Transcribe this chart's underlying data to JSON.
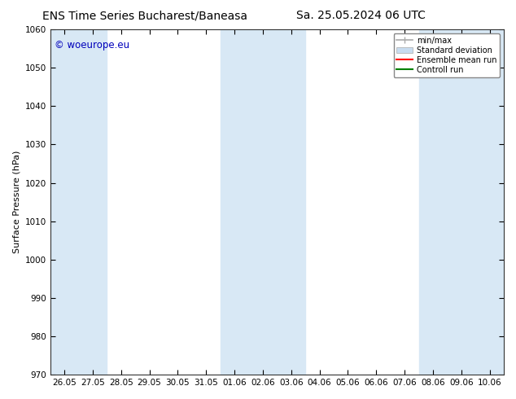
{
  "title_left": "ENS Time Series Bucharest/Baneasa",
  "title_right": "Sa. 25.05.2024 06 UTC",
  "ylabel": "Surface Pressure (hPa)",
  "ylim": [
    970,
    1060
  ],
  "yticks": [
    970,
    980,
    990,
    1000,
    1010,
    1020,
    1030,
    1040,
    1050,
    1060
  ],
  "xtick_labels": [
    "26.05",
    "27.05",
    "28.05",
    "29.05",
    "30.05",
    "31.05",
    "01.06",
    "02.06",
    "03.06",
    "04.06",
    "05.06",
    "06.06",
    "07.06",
    "08.06",
    "09.06",
    "10.06"
  ],
  "background_color": "#ffffff",
  "plot_bg_color": "#ffffff",
  "shaded_color": "#d8e8f5",
  "watermark_text": "© woeurope.eu",
  "watermark_color": "#0000bb",
  "legend_items": [
    "min/max",
    "Standard deviation",
    "Ensemble mean run",
    "Controll run"
  ],
  "minmax_color": "#aaaaaa",
  "stddev_color": "#c8dcf0",
  "ensemble_color": "#ff0000",
  "control_color": "#008000",
  "title_fontsize": 10,
  "axis_label_fontsize": 8,
  "tick_fontsize": 7.5
}
